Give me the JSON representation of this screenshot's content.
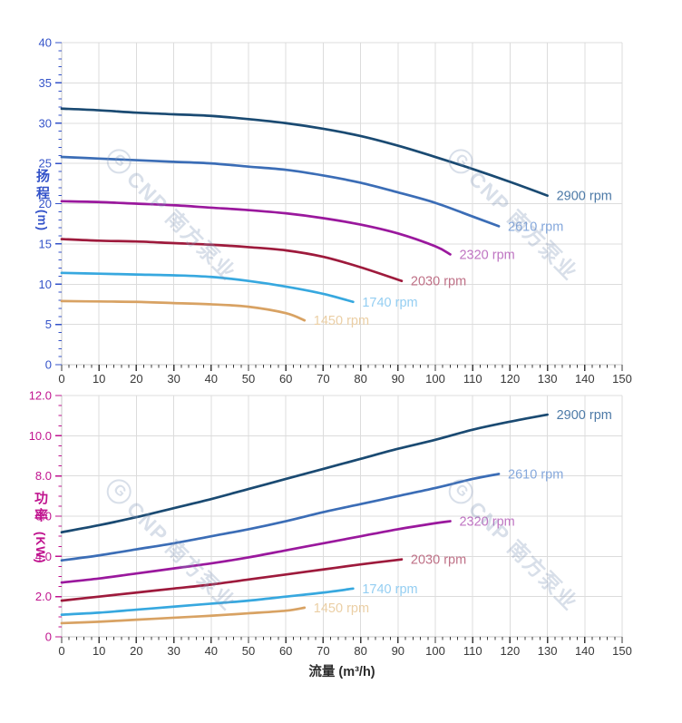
{
  "watermark": {
    "logo": "G",
    "text": "CNP 南方泵业",
    "color": "#8296b8"
  },
  "colors": {
    "grid": "#dcdcdc",
    "axis": "#c8c8c8",
    "x_tick": "#3a3a3a",
    "x_tick_label": "#383838",
    "head_accent": "#3453c9",
    "power_accent": "#c0148f"
  },
  "chart_data": [
    {
      "type": "line",
      "name": "head",
      "title": "",
      "xlabel": "",
      "ylabel": "扬程 (m)",
      "ylabel_text": "扬程",
      "ylabel_unit": "(m)",
      "xlim": [
        0,
        150
      ],
      "ylim": [
        0,
        40
      ],
      "x_major": 10,
      "x_minor": 2,
      "y_major": 5,
      "y_minor": 1,
      "grid": true,
      "x_tick_labels": [
        "0",
        "10",
        "20",
        "30",
        "40",
        "50",
        "60",
        "70",
        "80",
        "90",
        "100",
        "110",
        "120",
        "130",
        "140",
        "150"
      ],
      "y_tick_labels": [
        "0",
        "5",
        "10",
        "15",
        "20",
        "25",
        "30",
        "35",
        "40"
      ],
      "accent": "#3453c9",
      "series": [
        {
          "name": "2900 rpm",
          "color": "#1a4a72",
          "label_color": "#4d7aa7",
          "x": [
            0,
            10,
            20,
            30,
            40,
            50,
            60,
            70,
            80,
            90,
            100,
            110,
            120,
            130
          ],
          "y": [
            31.8,
            31.6,
            31.3,
            31.1,
            30.9,
            30.5,
            30.0,
            29.3,
            28.4,
            27.2,
            25.8,
            24.3,
            22.7,
            21.0
          ]
        },
        {
          "name": "2610 rpm",
          "color": "#3b6db6",
          "label_color": "#85a8dc",
          "x": [
            0,
            10,
            20,
            30,
            40,
            50,
            60,
            70,
            80,
            90,
            100,
            110,
            117
          ],
          "y": [
            25.8,
            25.6,
            25.4,
            25.2,
            25.0,
            24.6,
            24.2,
            23.5,
            22.6,
            21.4,
            20.1,
            18.4,
            17.2
          ]
        },
        {
          "name": "2320 rpm",
          "color": "#9a189d",
          "label_color": "#bf74c2",
          "x": [
            0,
            10,
            20,
            30,
            40,
            50,
            60,
            70,
            80,
            90,
            100,
            104
          ],
          "y": [
            20.3,
            20.2,
            20.0,
            19.8,
            19.5,
            19.2,
            18.8,
            18.2,
            17.4,
            16.3,
            14.7,
            13.7
          ]
        },
        {
          "name": "2030 rpm",
          "color": "#9e1a3c",
          "label_color": "#bf7187",
          "x": [
            0,
            10,
            20,
            30,
            40,
            50,
            60,
            70,
            80,
            91
          ],
          "y": [
            15.6,
            15.4,
            15.3,
            15.1,
            14.9,
            14.6,
            14.2,
            13.4,
            12.1,
            10.4
          ]
        },
        {
          "name": "1740 rpm",
          "color": "#37a8df",
          "label_color": "#94cef2",
          "x": [
            0,
            10,
            20,
            30,
            40,
            50,
            60,
            70,
            78
          ],
          "y": [
            11.4,
            11.3,
            11.2,
            11.1,
            10.9,
            10.4,
            9.7,
            8.8,
            7.8
          ]
        },
        {
          "name": "1450 rpm",
          "color": "#d8a263",
          "label_color": "#ebcfa5",
          "x": [
            0,
            10,
            20,
            30,
            40,
            50,
            60,
            65
          ],
          "y": [
            7.9,
            7.85,
            7.8,
            7.65,
            7.5,
            7.2,
            6.4,
            5.5
          ]
        }
      ]
    },
    {
      "type": "line",
      "name": "power",
      "title": "",
      "xlabel": "流量 (m³/h)",
      "ylabel": "功率 (KW)",
      "ylabel_text": "功率",
      "ylabel_unit": "(KW)",
      "xlim": [
        0,
        150
      ],
      "ylim": [
        0,
        12
      ],
      "x_major": 10,
      "x_minor": 2,
      "y_major": 2,
      "y_minor": 0.5,
      "grid": true,
      "x_tick_labels": [
        "0",
        "10",
        "20",
        "30",
        "40",
        "50",
        "60",
        "70",
        "80",
        "90",
        "100",
        "110",
        "120",
        "130",
        "140",
        "150"
      ],
      "y_tick_labels": [
        "0",
        "2.0",
        "4.0",
        "6.0",
        "8.0",
        "10.0",
        "12.0"
      ],
      "accent": "#c0148f",
      "series": [
        {
          "name": "2900 rpm",
          "color": "#1a4a72",
          "label_color": "#4d7aa7",
          "x": [
            0,
            10,
            20,
            30,
            40,
            50,
            60,
            70,
            80,
            90,
            100,
            110,
            120,
            130
          ],
          "y": [
            5.2,
            5.55,
            5.95,
            6.4,
            6.85,
            7.35,
            7.85,
            8.35,
            8.85,
            9.35,
            9.8,
            10.3,
            10.7,
            11.05
          ]
        },
        {
          "name": "2610 rpm",
          "color": "#3b6db6",
          "label_color": "#85a8dc",
          "x": [
            0,
            10,
            20,
            30,
            40,
            50,
            60,
            70,
            80,
            90,
            100,
            110,
            117
          ],
          "y": [
            3.8,
            4.05,
            4.35,
            4.65,
            5.0,
            5.35,
            5.75,
            6.2,
            6.6,
            7.0,
            7.4,
            7.85,
            8.1
          ]
        },
        {
          "name": "2320 rpm",
          "color": "#9a189d",
          "label_color": "#bf74c2",
          "x": [
            0,
            10,
            20,
            30,
            40,
            50,
            60,
            70,
            80,
            90,
            100,
            104
          ],
          "y": [
            2.7,
            2.9,
            3.15,
            3.4,
            3.65,
            3.95,
            4.3,
            4.65,
            5.0,
            5.35,
            5.65,
            5.75
          ]
        },
        {
          "name": "2030 rpm",
          "color": "#9e1a3c",
          "label_color": "#bf7187",
          "x": [
            0,
            10,
            20,
            30,
            40,
            50,
            60,
            70,
            80,
            91
          ],
          "y": [
            1.8,
            2.0,
            2.2,
            2.4,
            2.6,
            2.85,
            3.1,
            3.35,
            3.6,
            3.85
          ]
        },
        {
          "name": "1740 rpm",
          "color": "#37a8df",
          "label_color": "#94cef2",
          "x": [
            0,
            10,
            20,
            30,
            40,
            50,
            60,
            70,
            78
          ],
          "y": [
            1.1,
            1.2,
            1.35,
            1.5,
            1.65,
            1.8,
            2.0,
            2.2,
            2.4
          ]
        },
        {
          "name": "1450 rpm",
          "color": "#d8a263",
          "label_color": "#ebcfa5",
          "x": [
            0,
            10,
            20,
            30,
            40,
            50,
            60,
            65
          ],
          "y": [
            0.68,
            0.75,
            0.85,
            0.95,
            1.05,
            1.17,
            1.3,
            1.45
          ]
        }
      ]
    }
  ]
}
